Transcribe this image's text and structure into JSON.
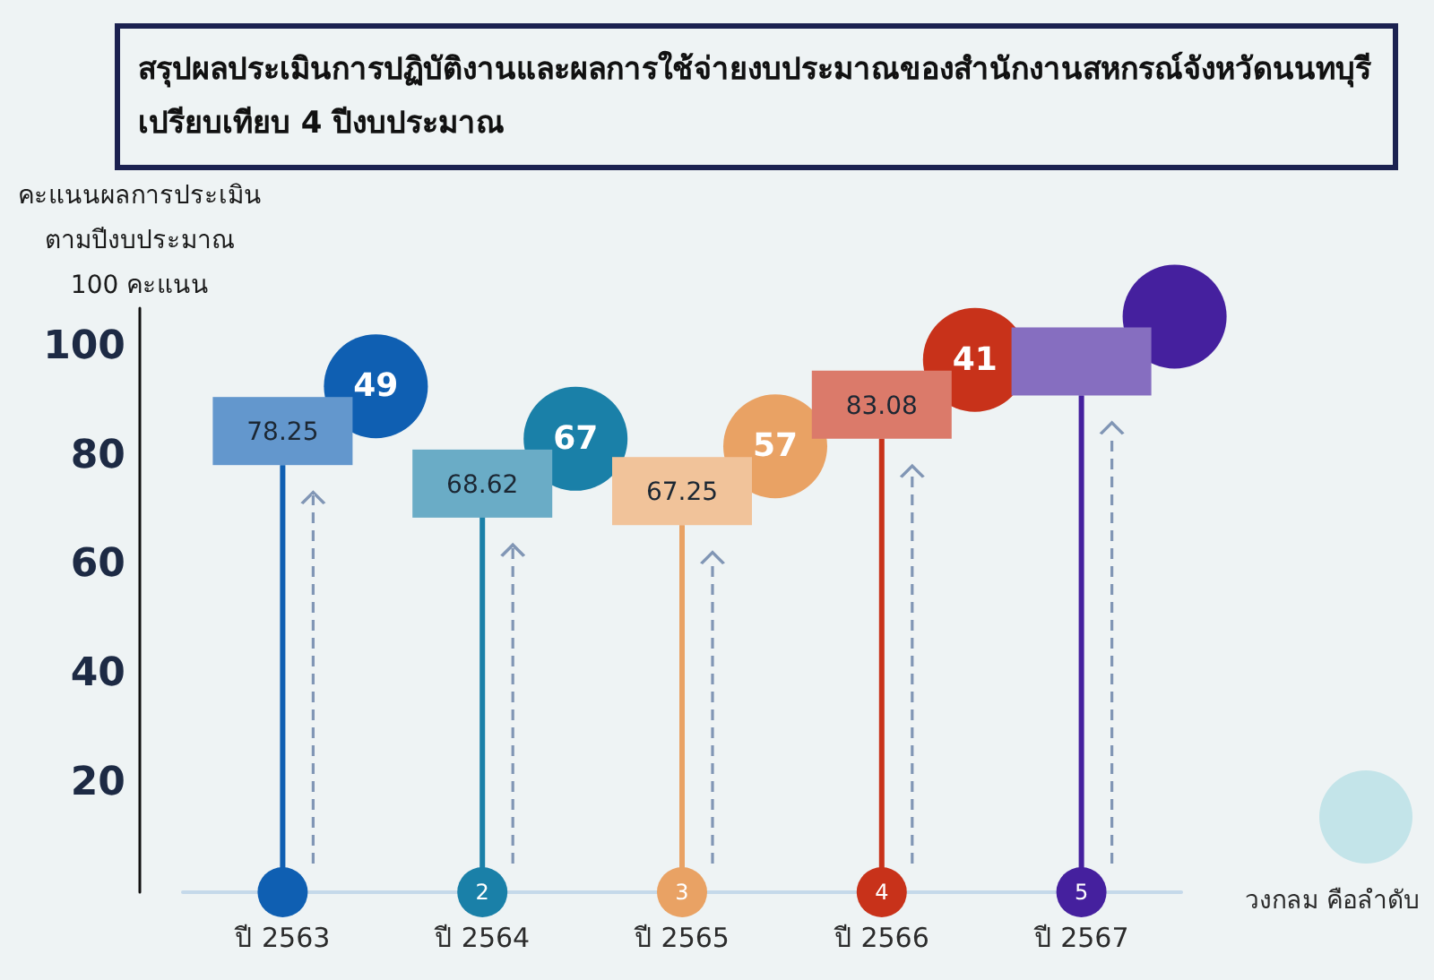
{
  "chart_data": {
    "type": "bar",
    "title": "สรุปผลประเมินการปฏิบัติงานและผลการใช้จ่ายงบประมาณของสำนักงานสหกรณ์จังหวัดนนทบุรี\nเปรียบเทียบ 4 ปีงบประมาณ",
    "ylabel": "คะแนนผลการประเมิน\nตามปีงบประมาณ\n100 คะแนน",
    "categories": [
      "ปี 2563",
      "ปี 2564",
      "ปี 2565",
      "ปี 2566",
      "ปี 2567"
    ],
    "values": [
      78.25,
      68.62,
      67.25,
      83.08,
      91
    ],
    "colors": [
      "#0f5fb2",
      "#1a80a8",
      "#e9a264",
      "#c8321a",
      "#45209e"
    ],
    "value_labels": [
      "78.25",
      "68.62",
      "67.25",
      "83.08",
      null
    ],
    "ylim": [
      0,
      107
    ],
    "yticks": [
      20,
      40,
      60,
      80,
      100
    ],
    "annotations": [
      "49",
      "67",
      "57",
      "41",
      {
        "text": "2",
        "x": "ปี 2564",
        "y": 0
      },
      {
        "text": "3",
        "x": "ปี 2565",
        "y": 0
      },
      {
        "text": "4",
        "x": "ปี 2566",
        "y": 0
      },
      {
        "text": "5",
        "x": "ปี 2567",
        "y": 0
      },
      "วงกลม คือลำดับ"
    ]
  }
}
